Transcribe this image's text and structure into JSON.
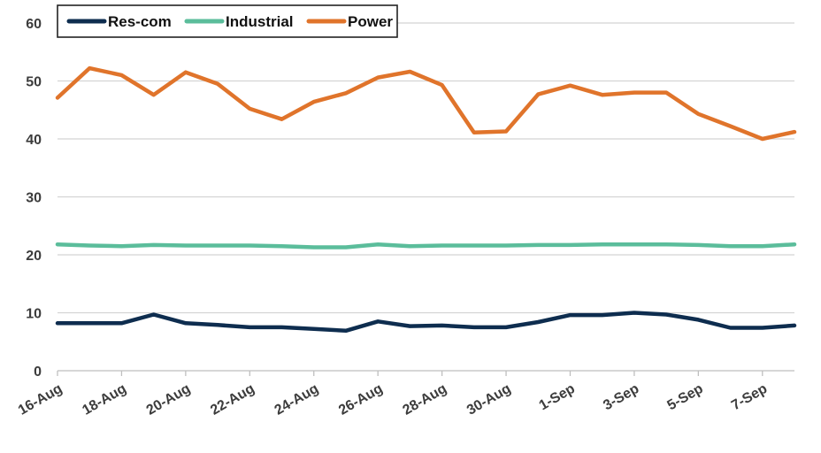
{
  "chart_data": {
    "type": "line",
    "title": "",
    "xlabel": "",
    "ylabel": "",
    "ylim": [
      0,
      60
    ],
    "yticks": [
      0,
      10,
      20,
      30,
      40,
      50,
      60
    ],
    "grid": true,
    "legend_placement": "top-left",
    "x": [
      "16-Aug",
      "17-Aug",
      "18-Aug",
      "19-Aug",
      "20-Aug",
      "21-Aug",
      "22-Aug",
      "23-Aug",
      "24-Aug",
      "25-Aug",
      "26-Aug",
      "27-Aug",
      "28-Aug",
      "29-Aug",
      "30-Aug",
      "31-Aug",
      "1-Sep",
      "2-Sep",
      "3-Sep",
      "4-Sep",
      "5-Sep",
      "6-Sep",
      "7-Sep",
      "8-Sep"
    ],
    "xtick_labels": [
      "16-Aug",
      "",
      "18-Aug",
      "",
      "20-Aug",
      "",
      "22-Aug",
      "",
      "24-Aug",
      "",
      "26-Aug",
      "",
      "28-Aug",
      "",
      "30-Aug",
      "",
      "1-Sep",
      "",
      "3-Sep",
      "",
      "5-Sep",
      "",
      "7-Sep",
      ""
    ],
    "series": [
      {
        "name": "Res-com",
        "color": "#0e2d4f",
        "values": [
          8.2,
          8.2,
          8.2,
          9.7,
          8.2,
          7.9,
          7.5,
          7.5,
          7.2,
          6.9,
          8.5,
          7.7,
          7.8,
          7.5,
          7.5,
          8.4,
          9.6,
          9.6,
          10.0,
          9.7,
          8.8,
          7.4,
          7.4,
          7.8
        ]
      },
      {
        "name": "Industrial",
        "color": "#5bbd9b",
        "values": [
          21.8,
          21.6,
          21.5,
          21.7,
          21.6,
          21.6,
          21.6,
          21.5,
          21.3,
          21.3,
          21.8,
          21.5,
          21.6,
          21.6,
          21.6,
          21.7,
          21.7,
          21.8,
          21.8,
          21.8,
          21.7,
          21.5,
          21.5,
          21.8
        ]
      },
      {
        "name": "Power",
        "color": "#e0742b",
        "values": [
          47.1,
          52.2,
          51.0,
          47.6,
          51.5,
          49.5,
          45.2,
          43.4,
          46.4,
          47.9,
          50.6,
          51.6,
          49.3,
          41.1,
          41.3,
          47.7,
          49.2,
          47.6,
          48.0,
          48.0,
          44.3,
          42.2,
          40.0,
          41.2
        ]
      }
    ]
  }
}
